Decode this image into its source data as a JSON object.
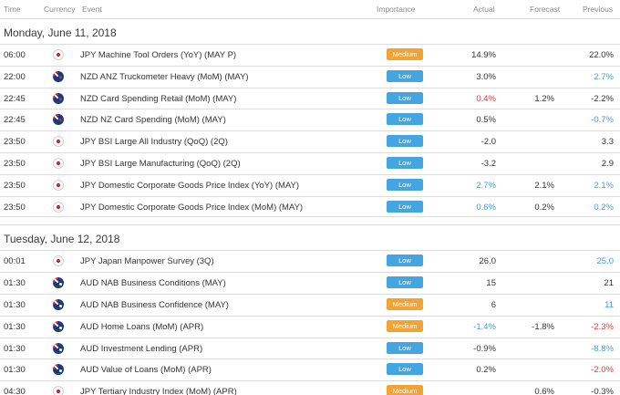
{
  "columns": {
    "time": "Time",
    "currency": "Currency",
    "event": "Event",
    "importance": "Importance",
    "actual": "Actual",
    "forecast": "Forecast",
    "previous": "Previous"
  },
  "colors": {
    "low_badge": "#44a5e0",
    "medium_badge": "#f2a335",
    "better_value": "#3f9fd8",
    "worse_value": "#e03a3a"
  },
  "days": [
    {
      "label": "Monday, June 11, 2018",
      "events": [
        {
          "time": "06:00",
          "flag": "jp-flag-icon",
          "event": "JPY Machine Tool Orders (YoY) (MAY P)",
          "importance": "Medium",
          "actual": "14.9%",
          "actual_color": "",
          "forecast": "",
          "previous": "22.0%",
          "previous_color": ""
        },
        {
          "time": "22:00",
          "flag": "nz-flag-icon",
          "event": "NZD ANZ Truckometer Heavy (MoM) (MAY)",
          "importance": "Low",
          "actual": "3.0%",
          "actual_color": "",
          "forecast": "",
          "previous": "2.7%",
          "previous_color": "blue"
        },
        {
          "time": "22:45",
          "flag": "nz-flag-icon",
          "event": "NZD Card Spending Retail (MoM) (MAY)",
          "importance": "Low",
          "actual": "0.4%",
          "actual_color": "red",
          "forecast": "1.2%",
          "previous": "-2.2%",
          "previous_color": ""
        },
        {
          "time": "22:45",
          "flag": "nz-flag-icon",
          "event": "NZD NZ Card Spending (MoM) (MAY)",
          "importance": "Low",
          "actual": "0.5%",
          "actual_color": "",
          "forecast": "",
          "previous": "-0.7%",
          "previous_color": "blue"
        },
        {
          "time": "23:50",
          "flag": "jp-flag-icon",
          "event": "JPY BSI Large All Industry (QoQ) (2Q)",
          "importance": "Low",
          "actual": "-2.0",
          "actual_color": "",
          "forecast": "",
          "previous": "3.3",
          "previous_color": ""
        },
        {
          "time": "23:50",
          "flag": "jp-flag-icon",
          "event": "JPY BSI Large Manufacturing (QoQ) (2Q)",
          "importance": "Low",
          "actual": "-3.2",
          "actual_color": "",
          "forecast": "",
          "previous": "2.9",
          "previous_color": ""
        },
        {
          "time": "23:50",
          "flag": "jp-flag-icon",
          "event": "JPY Domestic Corporate Goods Price Index (YoY) (MAY)",
          "importance": "Low",
          "actual": "2.7%",
          "actual_color": "blue",
          "forecast": "2.1%",
          "previous": "2.1%",
          "previous_color": "blue"
        },
        {
          "time": "23:50",
          "flag": "jp-flag-icon",
          "event": "JPY Domestic Corporate Goods Price Index (MoM) (MAY)",
          "importance": "Low",
          "actual": "0.6%",
          "actual_color": "blue",
          "forecast": "0.2%",
          "previous": "0.2%",
          "previous_color": "blue"
        }
      ]
    },
    {
      "label": "Tuesday, June 12, 2018",
      "events": [
        {
          "time": "00:01",
          "flag": "jp-flag-icon",
          "event": "JPY Japan Manpower Survey (3Q)",
          "importance": "Low",
          "actual": "26.0",
          "actual_color": "",
          "forecast": "",
          "previous": "25.0",
          "previous_color": "blue"
        },
        {
          "time": "01:30",
          "flag": "au-flag-icon",
          "event": "AUD NAB Business Conditions (MAY)",
          "importance": "Low",
          "actual": "15",
          "actual_color": "",
          "forecast": "",
          "previous": "21",
          "previous_color": ""
        },
        {
          "time": "01:30",
          "flag": "au-flag-icon",
          "event": "AUD NAB Business Confidence (MAY)",
          "importance": "Medium",
          "actual": "6",
          "actual_color": "",
          "forecast": "",
          "previous": "11",
          "previous_color": "blue"
        },
        {
          "time": "01:30",
          "flag": "au-flag-icon",
          "event": "AUD Home Loans (MoM) (APR)",
          "importance": "Medium",
          "actual": "-1.4%",
          "actual_color": "blue",
          "forecast": "-1.8%",
          "previous": "-2.3%",
          "previous_color": "red"
        },
        {
          "time": "01:30",
          "flag": "au-flag-icon",
          "event": "AUD Investment Lending (APR)",
          "importance": "Low",
          "actual": "-0.9%",
          "actual_color": "",
          "forecast": "",
          "previous": "-8.8%",
          "previous_color": "blue"
        },
        {
          "time": "01:30",
          "flag": "au-flag-icon",
          "event": "AUD Value of Loans (MoM) (APR)",
          "importance": "Low",
          "actual": "0.2%",
          "actual_color": "",
          "forecast": "",
          "previous": "-2.0%",
          "previous_color": "red"
        },
        {
          "time": "04:30",
          "flag": "jp-flag-icon",
          "event": "JPY Tertiary Industry Index (MoM) (APR)",
          "importance": "Medium",
          "actual": "",
          "actual_color": "",
          "forecast": "0.6%",
          "previous": "-0.3%",
          "previous_color": ""
        }
      ]
    }
  ]
}
